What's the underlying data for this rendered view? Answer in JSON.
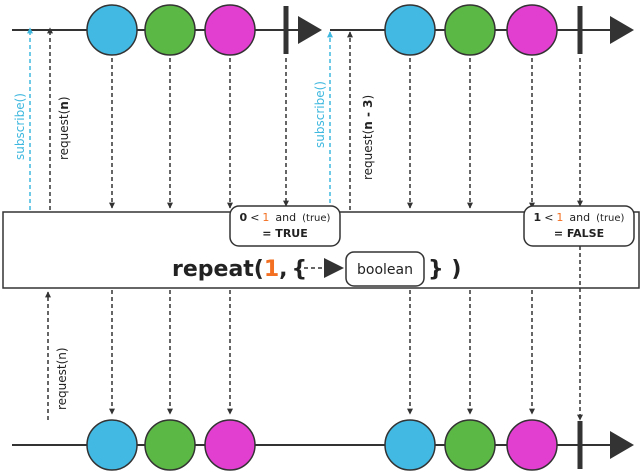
{
  "operator": {
    "name": "repeat(",
    "count": "1",
    "comma": ",",
    "open_brace": "{",
    "close": "} )",
    "predicate_label": "boolean"
  },
  "left_source": {
    "subscribe_label": "subscribe()",
    "request_prefix": "request(",
    "request_arg": "n",
    "request_suffix": ")"
  },
  "right_source": {
    "subscribe_label": "subscribe()",
    "request_prefix": "request(",
    "request_arg": "n - 3",
    "request_suffix": ")"
  },
  "output_request": "request(n)",
  "condition_1": {
    "lhs": "0",
    "op": "<",
    "rhs": "1",
    "and": "and",
    "pred": "(true)",
    "result": "= TRUE"
  },
  "condition_2": {
    "lhs": "1",
    "op": "<",
    "rhs": "1",
    "and": "and",
    "pred": "(true)",
    "result": "= FALSE"
  },
  "colors": {
    "blue": "#42b9e3",
    "green": "#5cb844",
    "magenta": "#e23ed0",
    "subscribe": "#3fb8df",
    "accent": "#f36f21",
    "line": "#333333"
  }
}
